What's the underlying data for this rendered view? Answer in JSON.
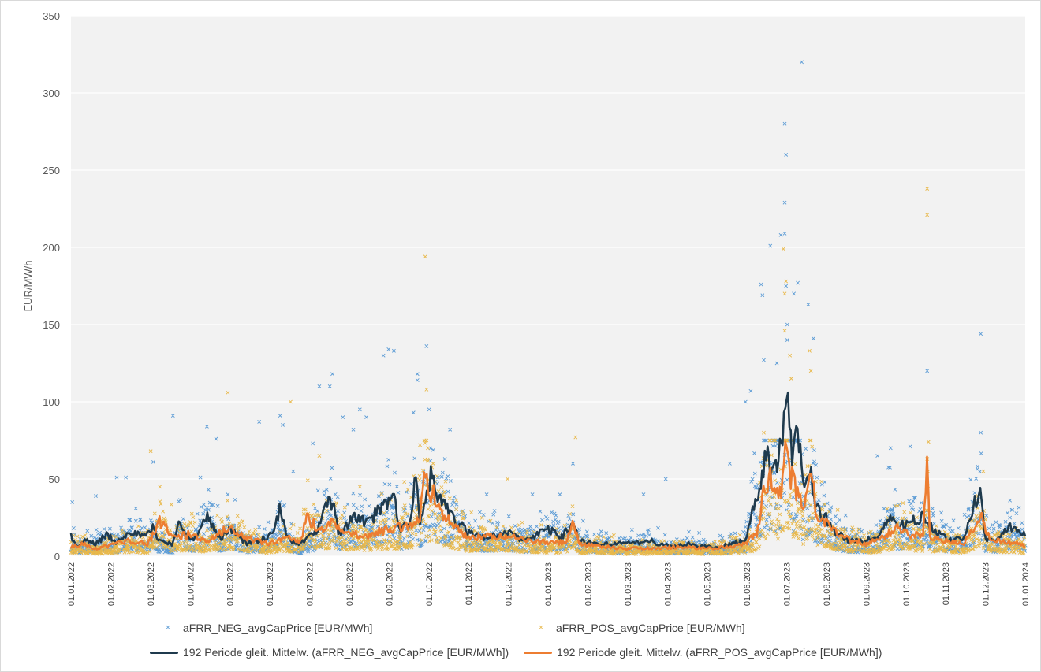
{
  "chart_data": {
    "type": "scatter",
    "ylabel": "EUR/MW/h",
    "ylim": [
      0,
      350
    ],
    "y_ticks": [
      0,
      50,
      100,
      150,
      200,
      250,
      300,
      350
    ],
    "x_range": [
      "2022-01-01",
      "2024-01-01"
    ],
    "x_tick_labels": [
      "01.01.2022",
      "01.02.2022",
      "01.03.2022",
      "01.04.2022",
      "01.05.2022",
      "01.06.2022",
      "01.07.2022",
      "01.08.2022",
      "01.09.2022",
      "01.10.2022",
      "01.11.2022",
      "01.12.2022",
      "01.01.2023",
      "01.02.2023",
      "01.03.2023",
      "01.04.2023",
      "01.05.2023",
      "01.06.2023",
      "01.07.2023",
      "01.08.2023",
      "01.09.2023",
      "01.10.2023",
      "01.11.2023",
      "01.12.2023",
      "01.01.2024"
    ],
    "grid": true,
    "legend_position": "bottom",
    "colors": {
      "neg_points": "#5b9bd5",
      "pos_points": "#e8b84a",
      "neg_avg": "#1f3a4d",
      "pos_avg": "#ed7d31",
      "plot_bg": "#f2f2f2",
      "grid": "#ffffff"
    },
    "series": [
      {
        "name": "aFRR_NEG_avgCapPrice [EUR/MWh]",
        "kind": "scatter",
        "color_key": "neg_points",
        "points": [
          [
            "2022-01-02",
            35
          ],
          [
            "2022-01-20",
            39
          ],
          [
            "2022-02-05",
            51
          ],
          [
            "2022-02-12",
            51
          ],
          [
            "2022-03-05",
            61
          ],
          [
            "2022-03-20",
            91
          ],
          [
            "2022-04-10",
            51
          ],
          [
            "2022-04-15",
            84
          ],
          [
            "2022-04-22",
            76
          ],
          [
            "2022-05-01",
            40
          ],
          [
            "2022-05-25",
            87
          ],
          [
            "2022-06-10",
            91
          ],
          [
            "2022-06-12",
            85
          ],
          [
            "2022-06-20",
            55
          ],
          [
            "2022-07-05",
            73
          ],
          [
            "2022-07-10",
            110
          ],
          [
            "2022-07-18",
            110
          ],
          [
            "2022-07-20",
            118
          ],
          [
            "2022-07-28",
            90
          ],
          [
            "2022-08-05",
            82
          ],
          [
            "2022-08-10",
            95
          ],
          [
            "2022-08-15",
            90
          ],
          [
            "2022-08-28",
            130
          ],
          [
            "2022-09-01",
            134
          ],
          [
            "2022-09-05",
            133
          ],
          [
            "2022-09-20",
            93
          ],
          [
            "2022-09-23",
            118
          ],
          [
            "2022-09-23",
            114
          ],
          [
            "2022-09-30",
            136
          ],
          [
            "2022-10-02",
            95
          ],
          [
            "2022-10-18",
            82
          ],
          [
            "2022-11-15",
            40
          ],
          [
            "2022-12-20",
            40
          ],
          [
            "2023-01-10",
            40
          ],
          [
            "2023-01-20",
            60
          ],
          [
            "2023-03-15",
            40
          ],
          [
            "2023-04-01",
            50
          ],
          [
            "2023-05-20",
            60
          ],
          [
            "2023-06-01",
            100
          ],
          [
            "2023-06-05",
            107
          ],
          [
            "2023-06-13",
            176
          ],
          [
            "2023-06-14",
            169
          ],
          [
            "2023-06-15",
            127
          ],
          [
            "2023-06-20",
            201
          ],
          [
            "2023-06-25",
            125
          ],
          [
            "2023-06-28",
            208
          ],
          [
            "2023-07-01",
            209
          ],
          [
            "2023-07-01",
            280
          ],
          [
            "2023-07-01",
            229
          ],
          [
            "2023-07-02",
            260
          ],
          [
            "2023-07-02",
            175
          ],
          [
            "2023-07-03",
            150
          ],
          [
            "2023-07-03",
            140
          ],
          [
            "2023-07-08",
            170
          ],
          [
            "2023-07-11",
            177
          ],
          [
            "2023-07-14",
            320
          ],
          [
            "2023-07-19",
            163
          ],
          [
            "2023-07-23",
            141
          ],
          [
            "2023-09-10",
            65
          ],
          [
            "2023-09-20",
            70
          ],
          [
            "2023-10-05",
            71
          ],
          [
            "2023-10-18",
            120
          ],
          [
            "2023-11-28",
            144
          ],
          [
            "2023-11-28",
            80
          ]
        ]
      },
      {
        "name": "aFRR_POS_avgCapPrice [EUR/MWh]",
        "kind": "scatter",
        "color_key": "pos_points",
        "points": [
          [
            "2022-03-03",
            68
          ],
          [
            "2022-03-10",
            45
          ],
          [
            "2022-05-01",
            106
          ],
          [
            "2022-06-18",
            100
          ],
          [
            "2022-07-10",
            65
          ],
          [
            "2022-08-10",
            45
          ],
          [
            "2022-09-25",
            72
          ],
          [
            "2022-09-29",
            194
          ],
          [
            "2022-09-30",
            108
          ],
          [
            "2022-10-01",
            70
          ],
          [
            "2022-10-05",
            60
          ],
          [
            "2022-12-01",
            50
          ],
          [
            "2023-01-22",
            77
          ],
          [
            "2023-06-15",
            80
          ],
          [
            "2023-06-30",
            199
          ],
          [
            "2023-07-01",
            170
          ],
          [
            "2023-07-01",
            146
          ],
          [
            "2023-07-02",
            178
          ],
          [
            "2023-07-05",
            130
          ],
          [
            "2023-07-06",
            115
          ],
          [
            "2023-07-20",
            133
          ],
          [
            "2023-07-21",
            120
          ],
          [
            "2023-10-18",
            238
          ],
          [
            "2023-10-18",
            221
          ],
          [
            "2023-10-19",
            74
          ],
          [
            "2023-11-30",
            55
          ]
        ]
      },
      {
        "name": "192 Periode gleit. Mittelw. (aFRR_NEG_avgCapPrice [EUR/MWh])",
        "kind": "line",
        "color_key": "neg_avg",
        "points": [
          [
            "2022-01-01",
            14
          ],
          [
            "2022-01-05",
            6
          ],
          [
            "2022-01-12",
            10
          ],
          [
            "2022-01-20",
            8
          ],
          [
            "2022-01-28",
            14
          ],
          [
            "2022-02-05",
            9
          ],
          [
            "2022-02-15",
            17
          ],
          [
            "2022-02-25",
            12
          ],
          [
            "2022-03-05",
            18
          ],
          [
            "2022-03-10",
            10
          ],
          [
            "2022-03-20",
            8
          ],
          [
            "2022-03-25",
            22
          ],
          [
            "2022-04-05",
            10
          ],
          [
            "2022-04-15",
            25
          ],
          [
            "2022-04-25",
            12
          ],
          [
            "2022-05-05",
            18
          ],
          [
            "2022-05-15",
            8
          ],
          [
            "2022-05-25",
            10
          ],
          [
            "2022-06-05",
            14
          ],
          [
            "2022-06-10",
            32
          ],
          [
            "2022-06-15",
            12
          ],
          [
            "2022-06-25",
            8
          ],
          [
            "2022-07-05",
            14
          ],
          [
            "2022-07-10",
            20
          ],
          [
            "2022-07-15",
            30
          ],
          [
            "2022-07-20",
            37
          ],
          [
            "2022-07-25",
            14
          ],
          [
            "2022-08-05",
            25
          ],
          [
            "2022-08-15",
            22
          ],
          [
            "2022-08-25",
            29
          ],
          [
            "2022-09-01",
            35
          ],
          [
            "2022-09-05",
            38
          ],
          [
            "2022-09-10",
            18
          ],
          [
            "2022-09-17",
            22
          ],
          [
            "2022-09-22",
            50
          ],
          [
            "2022-09-25",
            20
          ],
          [
            "2022-09-30",
            40
          ],
          [
            "2022-10-02",
            52
          ],
          [
            "2022-10-06",
            45
          ],
          [
            "2022-10-10",
            35
          ],
          [
            "2022-10-15",
            30
          ],
          [
            "2022-10-20",
            25
          ],
          [
            "2022-11-01",
            15
          ],
          [
            "2022-11-15",
            12
          ],
          [
            "2022-12-01",
            15
          ],
          [
            "2022-12-15",
            10
          ],
          [
            "2023-01-01",
            18
          ],
          [
            "2023-01-10",
            12
          ],
          [
            "2023-01-20",
            20
          ],
          [
            "2023-01-25",
            10
          ],
          [
            "2023-02-10",
            8
          ],
          [
            "2023-03-01",
            8
          ],
          [
            "2023-03-20",
            10
          ],
          [
            "2023-04-05",
            6
          ],
          [
            "2023-04-20",
            8
          ],
          [
            "2023-05-10",
            5
          ],
          [
            "2023-05-20",
            8
          ],
          [
            "2023-06-01",
            10
          ],
          [
            "2023-06-05",
            25
          ],
          [
            "2023-06-10",
            35
          ],
          [
            "2023-06-17",
            68
          ],
          [
            "2023-06-20",
            58
          ],
          [
            "2023-06-25",
            65
          ],
          [
            "2023-06-29",
            72
          ],
          [
            "2023-07-02",
            110
          ],
          [
            "2023-07-04",
            90
          ],
          [
            "2023-07-08",
            60
          ],
          [
            "2023-07-11",
            88
          ],
          [
            "2023-07-15",
            42
          ],
          [
            "2023-07-20",
            55
          ],
          [
            "2023-07-25",
            35
          ],
          [
            "2023-08-01",
            25
          ],
          [
            "2023-08-10",
            15
          ],
          [
            "2023-08-20",
            10
          ],
          [
            "2023-09-01",
            10
          ],
          [
            "2023-09-10",
            12
          ],
          [
            "2023-09-20",
            27
          ],
          [
            "2023-09-25",
            18
          ],
          [
            "2023-10-05",
            22
          ],
          [
            "2023-10-15",
            25
          ],
          [
            "2023-10-25",
            15
          ],
          [
            "2023-11-05",
            10
          ],
          [
            "2023-11-15",
            12
          ],
          [
            "2023-11-28",
            47
          ],
          [
            "2023-12-01",
            12
          ],
          [
            "2023-12-10",
            10
          ],
          [
            "2023-12-20",
            19
          ],
          [
            "2024-01-01",
            13
          ]
        ]
      },
      {
        "name": "192 Periode gleit. Mittelw. (aFRR_POS_avgCapPrice [EUR/MWh])",
        "kind": "line",
        "color_key": "pos_avg",
        "points": [
          [
            "2022-01-01",
            6
          ],
          [
            "2022-01-10",
            8
          ],
          [
            "2022-01-20",
            5
          ],
          [
            "2022-02-01",
            7
          ],
          [
            "2022-02-15",
            10
          ],
          [
            "2022-03-01",
            8
          ],
          [
            "2022-03-10",
            23
          ],
          [
            "2022-03-20",
            12
          ],
          [
            "2022-04-01",
            14
          ],
          [
            "2022-04-15",
            10
          ],
          [
            "2022-05-01",
            18
          ],
          [
            "2022-05-15",
            12
          ],
          [
            "2022-06-01",
            8
          ],
          [
            "2022-06-15",
            12
          ],
          [
            "2022-06-25",
            10
          ],
          [
            "2022-07-01",
            25
          ],
          [
            "2022-07-10",
            17
          ],
          [
            "2022-07-20",
            22
          ],
          [
            "2022-08-01",
            15
          ],
          [
            "2022-08-15",
            13
          ],
          [
            "2022-09-01",
            18
          ],
          [
            "2022-09-15",
            20
          ],
          [
            "2022-09-25",
            26
          ],
          [
            "2022-09-29",
            56
          ],
          [
            "2022-10-02",
            35
          ],
          [
            "2022-10-06",
            40
          ],
          [
            "2022-10-10",
            30
          ],
          [
            "2022-10-20",
            20
          ],
          [
            "2022-11-01",
            12
          ],
          [
            "2022-11-15",
            13
          ],
          [
            "2022-12-01",
            13
          ],
          [
            "2022-12-15",
            10
          ],
          [
            "2023-01-01",
            9
          ],
          [
            "2023-01-15",
            9
          ],
          [
            "2023-01-20",
            22
          ],
          [
            "2023-01-25",
            8
          ],
          [
            "2023-02-15",
            6
          ],
          [
            "2023-03-01",
            5
          ],
          [
            "2023-03-20",
            5
          ],
          [
            "2023-04-10",
            6
          ],
          [
            "2023-05-01",
            5
          ],
          [
            "2023-05-20",
            6
          ],
          [
            "2023-06-01",
            8
          ],
          [
            "2023-06-10",
            15
          ],
          [
            "2023-06-15",
            40
          ],
          [
            "2023-06-20",
            52
          ],
          [
            "2023-06-25",
            45
          ],
          [
            "2023-06-29",
            40
          ],
          [
            "2023-07-02",
            82
          ],
          [
            "2023-07-04",
            55
          ],
          [
            "2023-07-08",
            46
          ],
          [
            "2023-07-12",
            36
          ],
          [
            "2023-07-16",
            30
          ],
          [
            "2023-07-21",
            60
          ],
          [
            "2023-07-25",
            28
          ],
          [
            "2023-08-05",
            20
          ],
          [
            "2023-08-15",
            12
          ],
          [
            "2023-09-01",
            8
          ],
          [
            "2023-09-15",
            12
          ],
          [
            "2023-09-25",
            20
          ],
          [
            "2023-10-05",
            14
          ],
          [
            "2023-10-15",
            13
          ],
          [
            "2023-10-18",
            64
          ],
          [
            "2023-10-20",
            12
          ],
          [
            "2023-11-01",
            10
          ],
          [
            "2023-11-15",
            8
          ],
          [
            "2023-11-28",
            25
          ],
          [
            "2023-12-05",
            12
          ],
          [
            "2023-12-15",
            10
          ],
          [
            "2024-01-01",
            7
          ]
        ]
      }
    ]
  }
}
